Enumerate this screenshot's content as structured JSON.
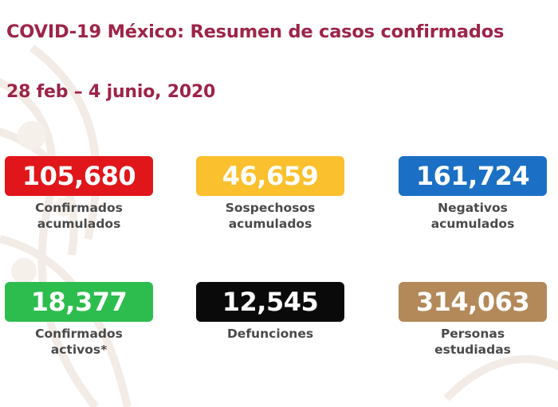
{
  "header": {
    "title": "COVID-19 México: Resumen de casos confirmados",
    "date_range": "28 feb – 4 junio, 2020"
  },
  "stats": [
    {
      "value": "105,680",
      "label": "Confirmados\nacumulados",
      "color": "#e0161b"
    },
    {
      "value": "46,659",
      "label": "Sospechosos\nacumulados",
      "color": "#fbc02d"
    },
    {
      "value": "161,724",
      "label": "Negativos\nacumulados",
      "color": "#1b70c5"
    },
    {
      "value": "18,377",
      "label": "Confirmados\nactivos*",
      "color": "#2dbd4e"
    },
    {
      "value": "12,545",
      "label": "Defunciones",
      "color": "#0a0a0a"
    },
    {
      "value": "314,063",
      "label": "Personas\nestudiadas",
      "color": "#b3895a"
    }
  ],
  "theme": {
    "title_color": "#9d2449",
    "label_color": "#4a4a4a"
  }
}
